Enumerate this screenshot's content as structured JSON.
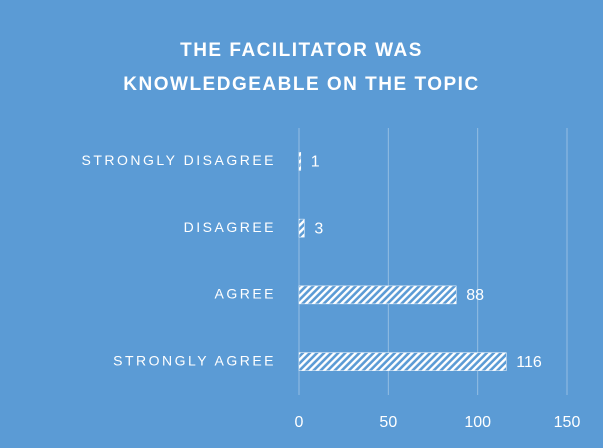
{
  "chart_data": {
    "type": "bar",
    "orientation": "horizontal",
    "title": "THE FACILITATOR WAS KNOWLEDGEABLE ON THE TOPIC",
    "categories": [
      "STRONGLY DISAGREE",
      "DISAGREE",
      "AGREE",
      "STRONGLY AGREE"
    ],
    "values": [
      1,
      3,
      88,
      116
    ],
    "color": "#ffffff",
    "background": "#5b9bd5",
    "xlim": [
      0,
      150
    ],
    "xticks": [
      0,
      50,
      100,
      150
    ],
    "grid": true
  }
}
